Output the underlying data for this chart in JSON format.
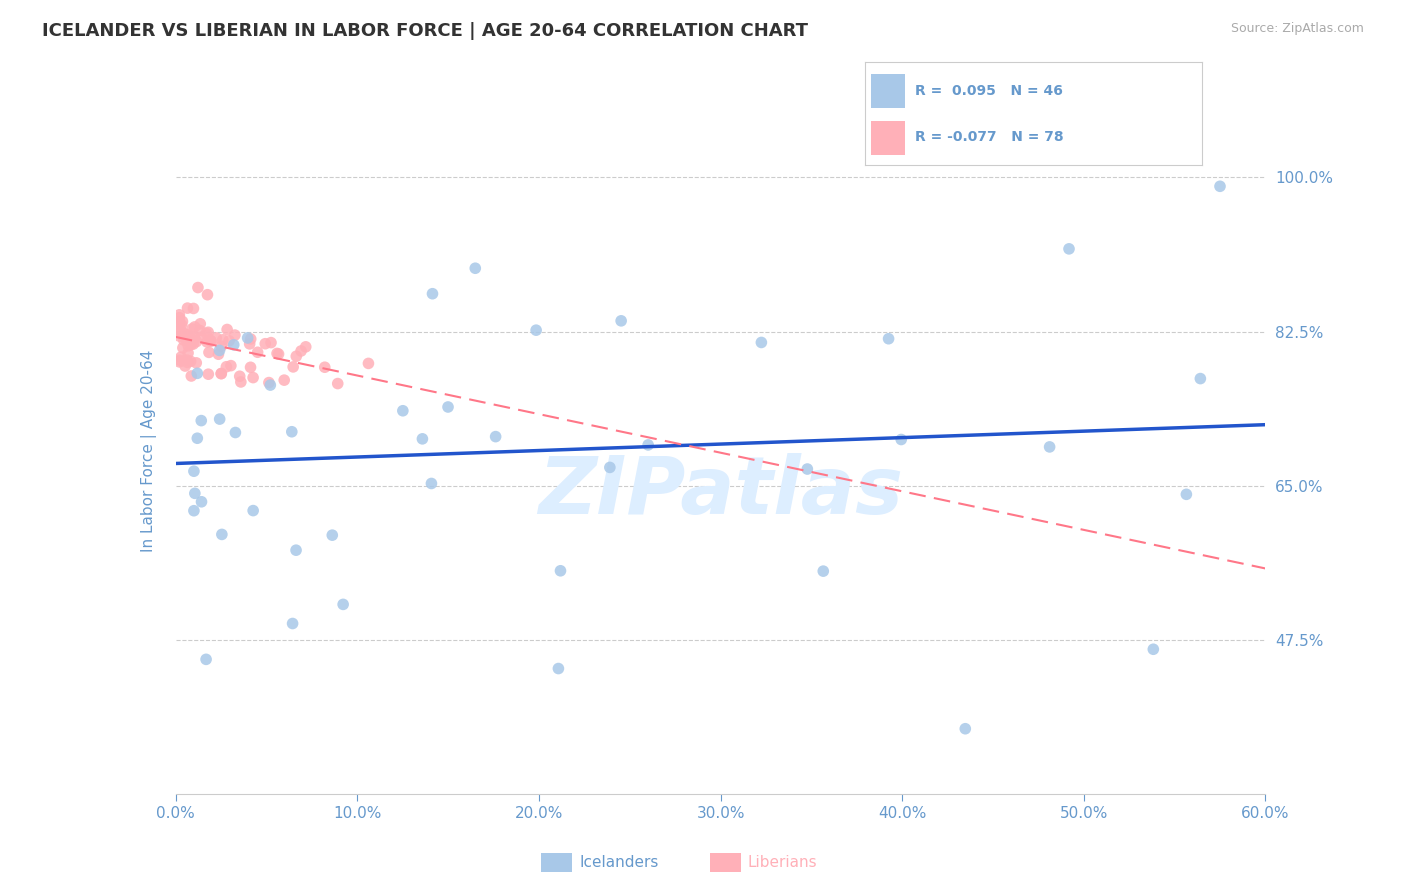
{
  "title": "ICELANDER VS LIBERIAN IN LABOR FORCE | AGE 20-64 CORRELATION CHART",
  "source_text": "Source: ZipAtlas.com",
  "ylabel": "In Labor Force | Age 20-64",
  "legend_label_1": "Icelanders",
  "legend_label_2": "Liberians",
  "R1": 0.095,
  "N1": 46,
  "R2": -0.077,
  "N2": 78,
  "xlim": [
    0.0,
    0.6
  ],
  "ylim": [
    0.3,
    1.08
  ],
  "yticks": [
    0.475,
    0.65,
    0.825,
    1.0
  ],
  "ytick_labels": [
    "47.5%",
    "65.0%",
    "82.5%",
    "100.0%"
  ],
  "xticks": [
    0.0,
    0.1,
    0.2,
    0.3,
    0.4,
    0.5,
    0.6
  ],
  "xtick_labels": [
    "0.0%",
    "10.0%",
    "20.0%",
    "30.0%",
    "40.0%",
    "50.0%",
    "60.0%"
  ],
  "color_blue": "#A8C8E8",
  "color_pink": "#FFB0B8",
  "color_blue_line": "#2255CC",
  "color_pink_line": "#FF7788",
  "watermark": "ZIPatlas",
  "watermark_color": "#DDEEFF",
  "background_color": "#FFFFFF",
  "title_fontsize": 13,
  "tick_label_color": "#6699CC",
  "grid_color": "#CCCCCC"
}
